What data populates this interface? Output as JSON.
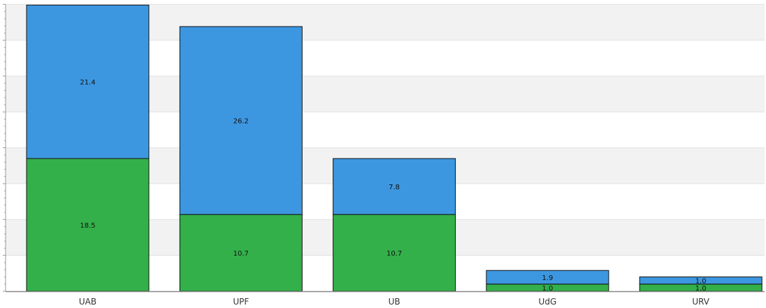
{
  "chart_data": {
    "type": "bar",
    "stacked": true,
    "categories": [
      "UAB",
      "UPF",
      "UB",
      "UdG",
      "URV"
    ],
    "series": [
      {
        "values": [
          18.5,
          10.7,
          10.7,
          1.0,
          1.0
        ],
        "color": "#33b04a"
      },
      {
        "values": [
          21.4,
          26.2,
          7.8,
          1.9,
          1.0
        ],
        "color": "#3d97e0"
      }
    ],
    "ylim": [
      0,
      40
    ],
    "grid": true,
    "grid_band_colors": [
      "#f2f2f2",
      "#ffffff"
    ],
    "bar_outline_color": "#111111",
    "legend": "none"
  }
}
